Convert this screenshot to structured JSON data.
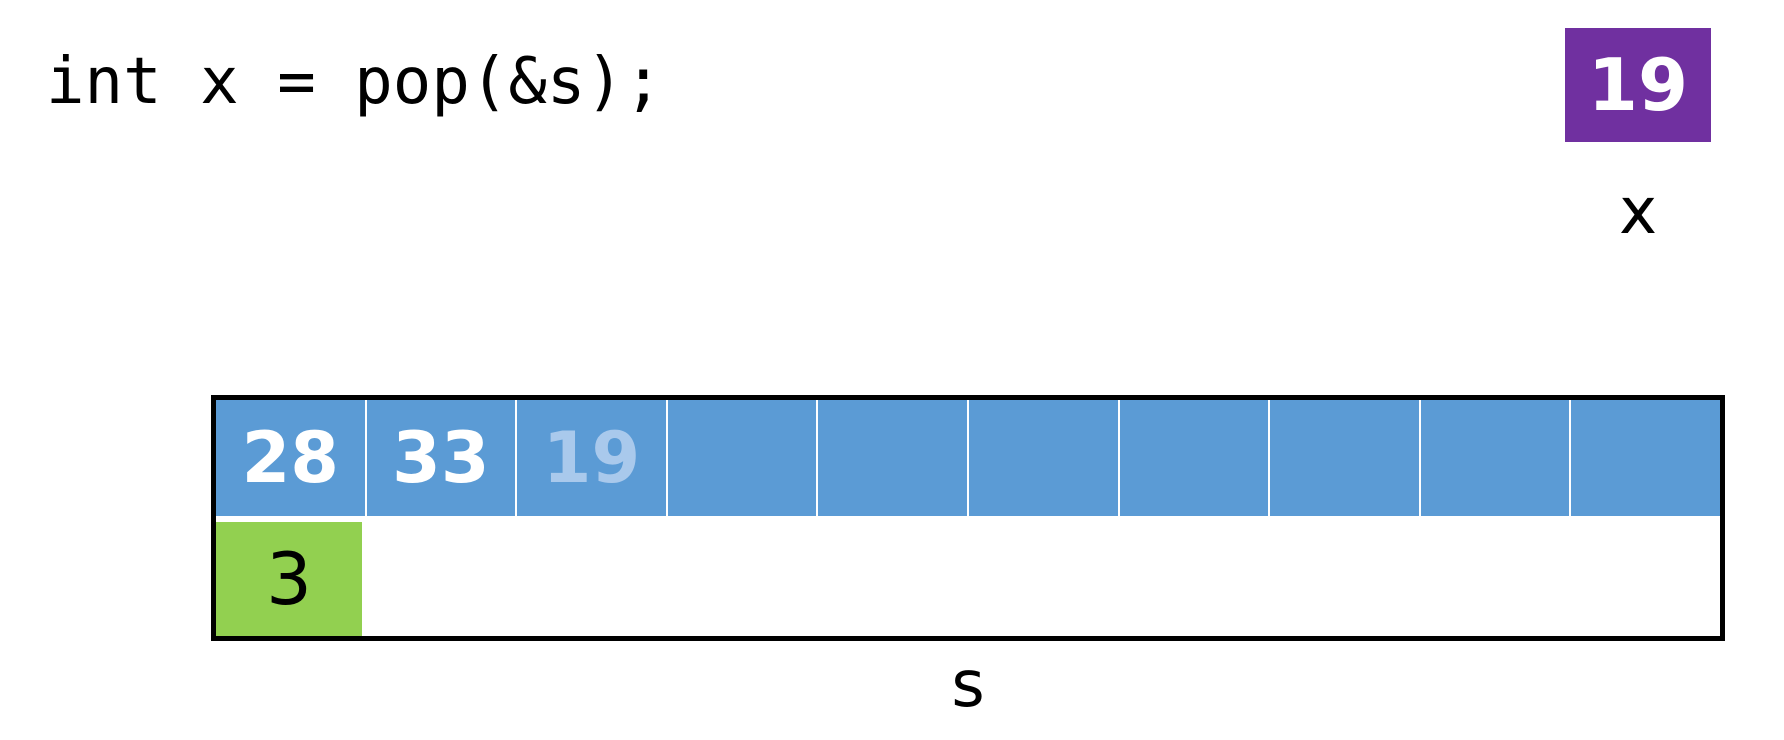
{
  "code": {
    "line": "int x = pop(&s);"
  },
  "variable_x": {
    "value": "19",
    "label": "x",
    "color": "#7030a0"
  },
  "stack_s": {
    "label": "s",
    "array_color": "#5b9bd5",
    "top_color": "#92d050",
    "cells": [
      {
        "value": "28",
        "faded": false
      },
      {
        "value": "33",
        "faded": false
      },
      {
        "value": "19",
        "faded": true
      },
      {
        "value": "",
        "faded": false
      },
      {
        "value": "",
        "faded": false
      },
      {
        "value": "",
        "faded": false
      },
      {
        "value": "",
        "faded": false
      },
      {
        "value": "",
        "faded": false
      },
      {
        "value": "",
        "faded": false
      },
      {
        "value": "",
        "faded": false
      }
    ],
    "top": "3"
  }
}
